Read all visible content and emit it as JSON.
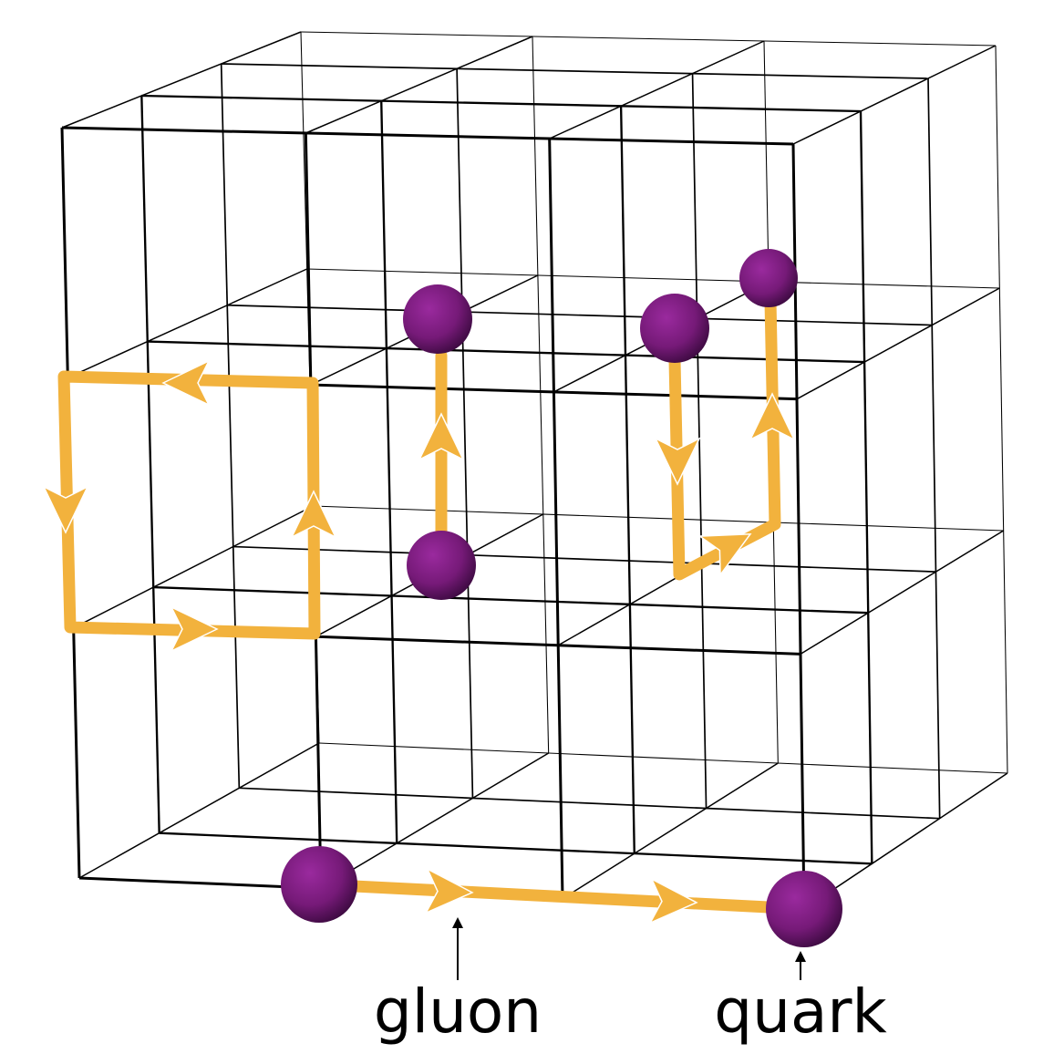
{
  "annotations": [
    {
      "text": "gluon"
    },
    {
      "text": "quark"
    }
  ]
}
